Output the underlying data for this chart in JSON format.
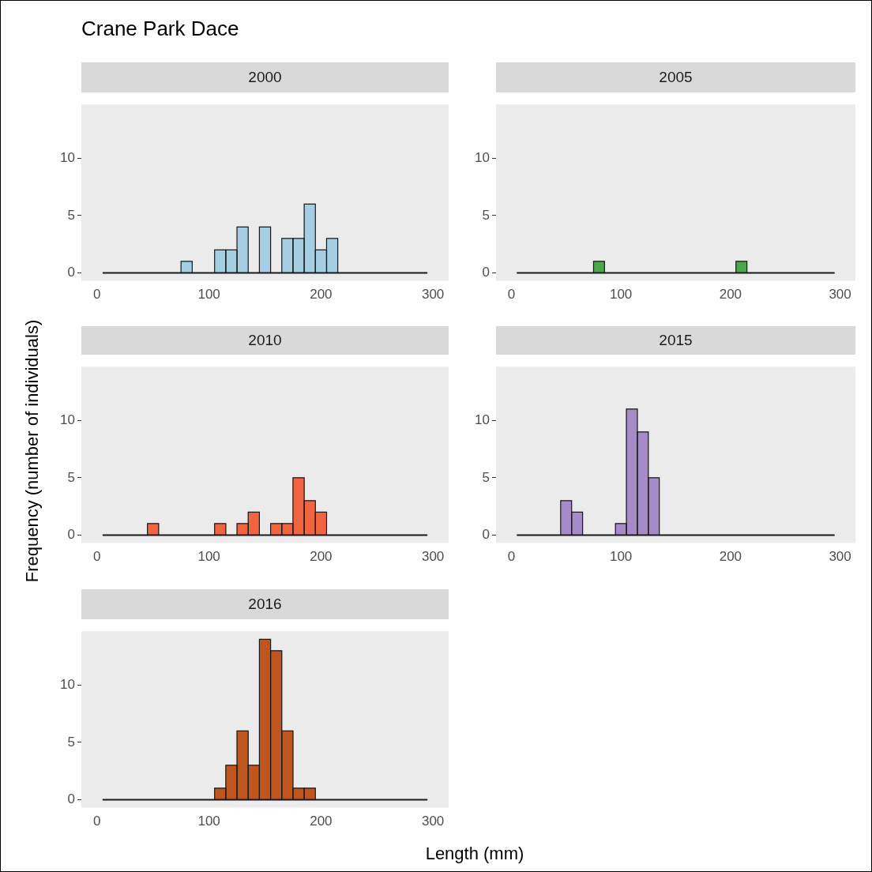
{
  "chart_data": [
    {
      "type": "histogram",
      "title": "Crane Park Dace",
      "subtitle": "2000",
      "color": "#a6cee3",
      "bins": [
        5,
        15,
        25,
        35,
        45,
        55,
        65,
        75,
        85,
        95,
        105,
        115,
        125,
        135,
        145,
        155,
        165,
        175,
        185,
        195,
        205,
        215,
        225,
        235,
        245,
        255,
        265,
        275,
        285,
        295
      ],
      "values": [
        0,
        0,
        0,
        0,
        0,
        0,
        0,
        1,
        0,
        0,
        2,
        2,
        4,
        0,
        4,
        0,
        3,
        3,
        6,
        2,
        3,
        0,
        0,
        0,
        0,
        0,
        0,
        0,
        0
      ],
      "xlim": [
        -14,
        314
      ],
      "ylim": [
        -0.7,
        14.7
      ],
      "xticks": [
        0,
        100,
        200,
        300
      ],
      "yticks": [
        0,
        5,
        10
      ]
    },
    {
      "type": "histogram",
      "subtitle": "2005",
      "color": "#4ca64c",
      "bins": [
        5,
        15,
        25,
        35,
        45,
        55,
        65,
        75,
        85,
        95,
        105,
        115,
        125,
        135,
        145,
        155,
        165,
        175,
        185,
        195,
        205,
        215,
        225,
        235,
        245,
        255,
        265,
        275,
        285,
        295
      ],
      "values": [
        0,
        0,
        0,
        0,
        0,
        0,
        0,
        1,
        0,
        0,
        0,
        0,
        0,
        0,
        0,
        0,
        0,
        0,
        0,
        0,
        1,
        0,
        0,
        0,
        0,
        0,
        0,
        0,
        0
      ],
      "xlim": [
        -14,
        314
      ],
      "ylim": [
        -0.7,
        14.7
      ],
      "xticks": [
        0,
        100,
        200,
        300
      ],
      "yticks": [
        0,
        5,
        10
      ]
    },
    {
      "type": "histogram",
      "subtitle": "2010",
      "ylabel": "Frequency (number of individuals)",
      "color": "#f0653f",
      "bins": [
        5,
        15,
        25,
        35,
        45,
        55,
        65,
        75,
        85,
        95,
        105,
        115,
        125,
        135,
        145,
        155,
        165,
        175,
        185,
        195,
        205,
        215,
        225,
        235,
        245,
        255,
        265,
        275,
        285,
        295
      ],
      "values": [
        0,
        0,
        0,
        0,
        1,
        0,
        0,
        0,
        0,
        0,
        1,
        0,
        1,
        2,
        0,
        1,
        1,
        5,
        3,
        2,
        0,
        0,
        0,
        0,
        0,
        0,
        0,
        0,
        0
      ],
      "xlim": [
        -14,
        314
      ],
      "ylim": [
        -0.7,
        14.7
      ],
      "xticks": [
        0,
        100,
        200,
        300
      ],
      "yticks": [
        0,
        5,
        10
      ]
    },
    {
      "type": "histogram",
      "subtitle": "2015",
      "color": "#a58bc8",
      "bins": [
        5,
        15,
        25,
        35,
        45,
        55,
        65,
        75,
        85,
        95,
        105,
        115,
        125,
        135,
        145,
        155,
        165,
        175,
        185,
        195,
        205,
        215,
        225,
        235,
        245,
        255,
        265,
        275,
        285,
        295
      ],
      "values": [
        0,
        0,
        0,
        0,
        3,
        2,
        0,
        0,
        0,
        1,
        11,
        9,
        5,
        0,
        0,
        0,
        0,
        0,
        0,
        0,
        0,
        0,
        0,
        0,
        0,
        0,
        0,
        0,
        0
      ],
      "xlim": [
        -14,
        314
      ],
      "ylim": [
        -0.7,
        14.7
      ],
      "xticks": [
        0,
        100,
        200,
        300
      ],
      "yticks": [
        0,
        5,
        10
      ]
    },
    {
      "type": "histogram",
      "subtitle": "2016",
      "xlabel": "Length (mm)",
      "color": "#c0561f",
      "bins": [
        5,
        15,
        25,
        35,
        45,
        55,
        65,
        75,
        85,
        95,
        105,
        115,
        125,
        135,
        145,
        155,
        165,
        175,
        185,
        195,
        205,
        215,
        225,
        235,
        245,
        255,
        265,
        275,
        285,
        295
      ],
      "values": [
        0,
        0,
        0,
        0,
        0,
        0,
        0,
        0,
        0,
        0,
        1,
        3,
        6,
        3,
        14,
        13,
        6,
        1,
        1,
        0,
        0,
        0,
        0,
        0,
        0,
        0,
        0,
        0,
        0
      ],
      "xlim": [
        -14,
        314
      ],
      "ylim": [
        -0.7,
        14.7
      ],
      "xticks": [
        0,
        100,
        200,
        300
      ],
      "yticks": [
        0,
        5,
        10
      ]
    }
  ]
}
